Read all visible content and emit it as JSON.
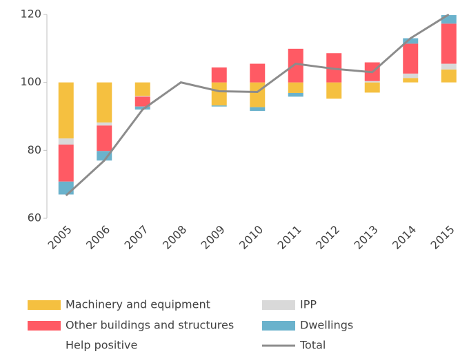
{
  "chart_data": {
    "type": "stacked-bar-line",
    "categories": [
      "2005",
      "2006",
      "2007",
      "2008",
      "2009",
      "2010",
      "2011",
      "2012",
      "2013",
      "2014",
      "2015"
    ],
    "base": 100,
    "series": [
      {
        "name": "Machinery and equipment",
        "color": "#f5c040",
        "values": [
          -16.5,
          -11.8,
          -4,
          0,
          -6.8,
          -7.3,
          -3.1,
          -4.8,
          -3,
          1.3,
          3.8
        ]
      },
      {
        "name": "IPP",
        "color": "#d9d9d9",
        "values": [
          -1.8,
          -0.9,
          -0.2,
          0,
          0,
          0,
          0,
          0,
          0.4,
          1.3,
          1.7
        ]
      },
      {
        "name": "Other buildings and structures",
        "color": "#ff5a64",
        "values": [
          -10.9,
          -7.5,
          -2.9,
          0,
          4.4,
          5.5,
          9.9,
          8.6,
          5.5,
          8.8,
          11.8
        ]
      },
      {
        "name": "Dwellings",
        "color": "#6ab2cc",
        "values": [
          -3.8,
          -2.8,
          -0.9,
          0,
          -0.3,
          -1.1,
          -1.1,
          0,
          0,
          1.6,
          2.5
        ]
      },
      {
        "name": "Help positive",
        "values": [
          null,
          null,
          null,
          null,
          null,
          null,
          null,
          null,
          null,
          null,
          null
        ]
      },
      {
        "name": "Total",
        "type": "line",
        "color": "#8c8c8c",
        "values": [
          66.7,
          77,
          92,
          100,
          97.4,
          97.2,
          105.5,
          104,
          103,
          113,
          120
        ]
      }
    ],
    "ylim": [
      60,
      120
    ],
    "yticks": [
      60,
      80,
      100,
      120
    ]
  }
}
